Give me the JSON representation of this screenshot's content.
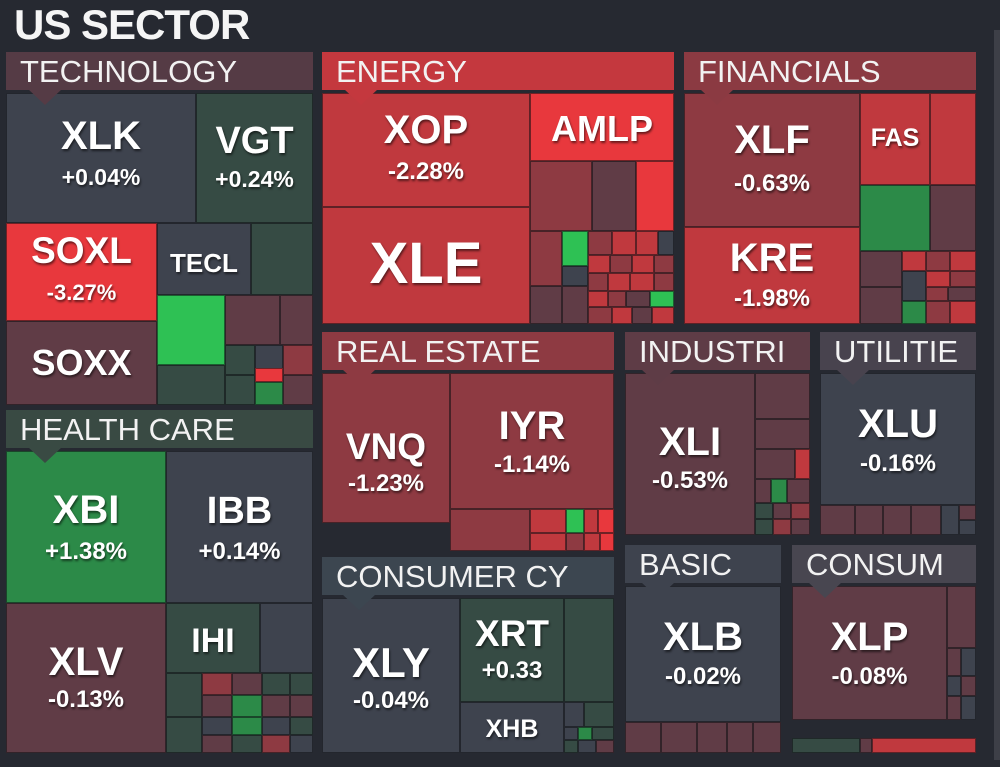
{
  "title": "US SECTOR",
  "colors": {
    "background": "#262931",
    "strong_red": "#e8383d",
    "red": "#c0393e",
    "dark_red": "#8e3a42",
    "muted_red": "#603c46",
    "neutral": "#3e434e",
    "green_gray": "#364b44",
    "green": "#2c8a48",
    "strong_green": "#2ec154"
  },
  "sectors": [
    {
      "id": "technology",
      "label": "TECHNOLOGY"
    },
    {
      "id": "energy",
      "label": "ENERGY"
    },
    {
      "id": "financials",
      "label": "FINANCIALS"
    },
    {
      "id": "health_care",
      "label": "HEALTH CARE"
    },
    {
      "id": "real_estate",
      "label": "REAL ESTATE"
    },
    {
      "id": "industrials",
      "label": "INDUSTRI"
    },
    {
      "id": "utilities",
      "label": "UTILITIE"
    },
    {
      "id": "consumer_cyclical",
      "label": "CONSUMER CY"
    },
    {
      "id": "basic",
      "label": "BASIC"
    },
    {
      "id": "consumer_staples",
      "label": "CONSUM"
    }
  ],
  "tiles": {
    "xlk": {
      "symbol": "XLK",
      "change": "+0.04%"
    },
    "vgt": {
      "symbol": "VGT",
      "change": "+0.24%"
    },
    "soxl": {
      "symbol": "SOXL",
      "change": "-3.27%"
    },
    "tecl": {
      "symbol": "TECL"
    },
    "soxx": {
      "symbol": "SOXX"
    },
    "xop": {
      "symbol": "XOP",
      "change": "-2.28%"
    },
    "amlp": {
      "symbol": "AMLP"
    },
    "xle": {
      "symbol": "XLE"
    },
    "xlf": {
      "symbol": "XLF",
      "change": "-0.63%"
    },
    "fas": {
      "symbol": "FAS"
    },
    "kre": {
      "symbol": "KRE",
      "change": "-1.98%"
    },
    "xbi": {
      "symbol": "XBI",
      "change": "+1.38%"
    },
    "ibb": {
      "symbol": "IBB",
      "change": "+0.14%"
    },
    "xlv": {
      "symbol": "XLV",
      "change": "-0.13%"
    },
    "ihi": {
      "symbol": "IHI"
    },
    "vnq": {
      "symbol": "VNQ",
      "change": "-1.23%"
    },
    "iyr": {
      "symbol": "IYR",
      "change": "-1.14%"
    },
    "xli": {
      "symbol": "XLI",
      "change": "-0.53%"
    },
    "xlu": {
      "symbol": "XLU",
      "change": "-0.16%"
    },
    "xly": {
      "symbol": "XLY",
      "change": "-0.04%"
    },
    "xrt": {
      "symbol": "XRT",
      "change": "+0.33"
    },
    "xhb": {
      "symbol": "XHB"
    },
    "xlb": {
      "symbol": "XLB",
      "change": "-0.02%"
    },
    "xlp": {
      "symbol": "XLP",
      "change": "-0.08%"
    }
  }
}
